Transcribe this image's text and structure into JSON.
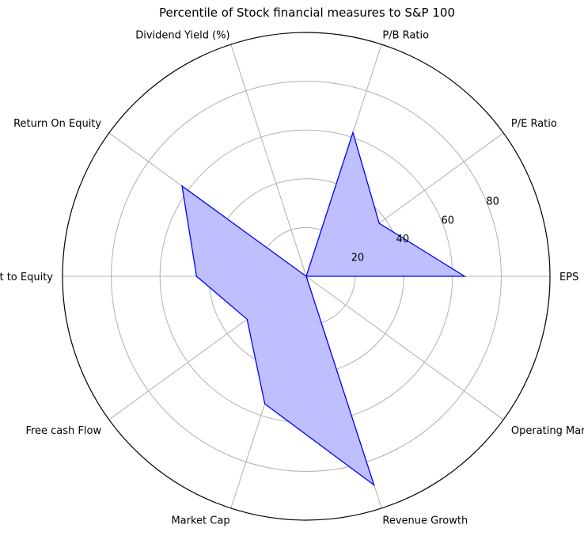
{
  "chart_data": {
    "type": "radar",
    "title": "Percentile of Stock financial measures to S&P 100",
    "categories": [
      "EPS",
      "P/E Ratio",
      "P/B Ratio",
      "Dividend Yield (%)",
      "Return On Equity",
      "Debt to Equity",
      "Free cash Flow",
      "Market Cap",
      "Revenue Growth",
      "Operating Margin"
    ],
    "series": [
      {
        "values": [
          65,
          37,
          62,
          0,
          63,
          45,
          30,
          55,
          90,
          0
        ]
      }
    ],
    "r_ticks": [
      20,
      40,
      60,
      80
    ],
    "rlim": [
      0,
      100
    ],
    "grid": true,
    "colors": {
      "line": "#0000ff",
      "fill": "#bfbfff",
      "grid": "#b0b0b0",
      "spine": "#000000"
    }
  }
}
